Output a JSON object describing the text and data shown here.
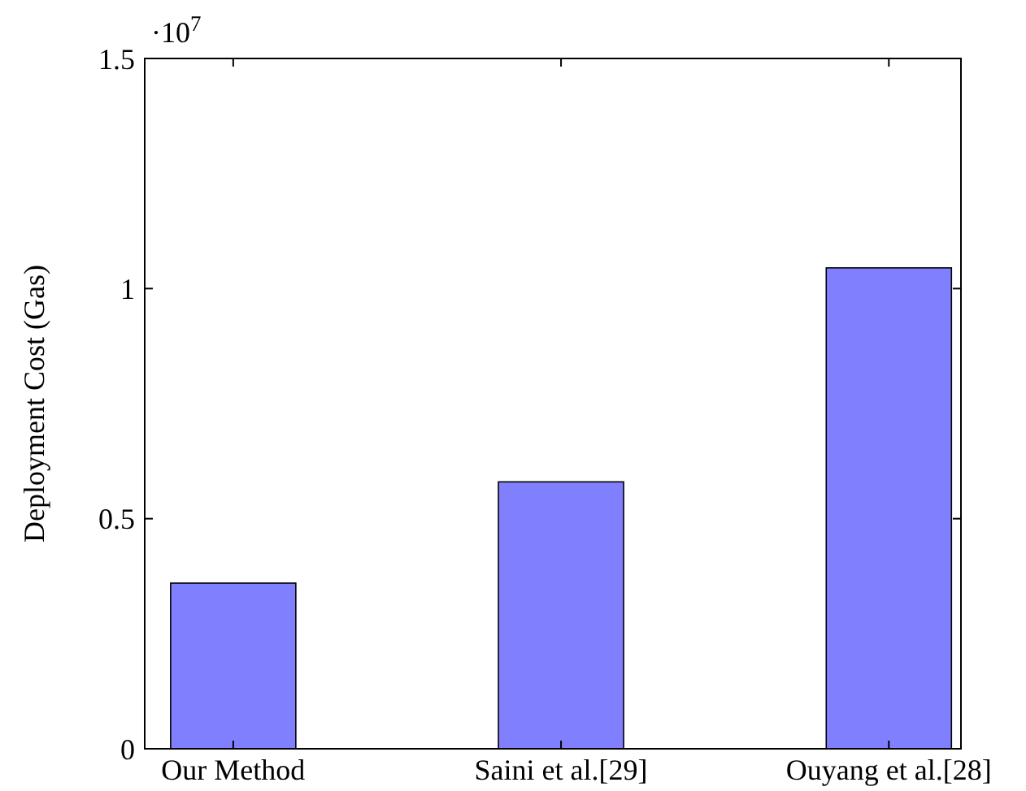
{
  "chart_data": {
    "type": "bar",
    "ylabel": "Deployment Cost (Gas)",
    "categories": [
      "Our Method",
      "Saini et al.[29]",
      "Ouyang et al.[28]"
    ],
    "values": [
      0.36,
      0.58,
      1.045
    ],
    "color": "#8080ff",
    "ylim": [
      0,
      1.5
    ],
    "yticks": [
      0,
      0.5,
      1,
      1.5
    ],
    "annotations": [
      "·10$^{7}$"
    ]
  }
}
